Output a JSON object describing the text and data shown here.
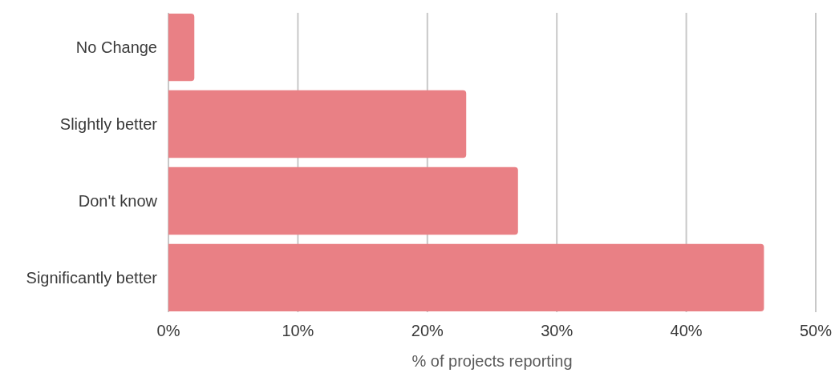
{
  "chart_data": {
    "type": "bar",
    "orientation": "horizontal",
    "categories": [
      "No Change",
      "Slightly better",
      "Don't know",
      "Significantly better"
    ],
    "values": [
      2,
      23,
      27,
      46
    ],
    "color": "#e98085",
    "xlabel": "% of projects reporting",
    "xlim": [
      0,
      50
    ],
    "xticks": [
      {
        "value": 0,
        "label": "0%"
      },
      {
        "value": 10,
        "label": "10%"
      },
      {
        "value": 20,
        "label": "20%"
      },
      {
        "value": 30,
        "label": "30%"
      },
      {
        "value": 40,
        "label": "40%"
      },
      {
        "value": 50,
        "label": "50%"
      }
    ],
    "grid": "x"
  }
}
